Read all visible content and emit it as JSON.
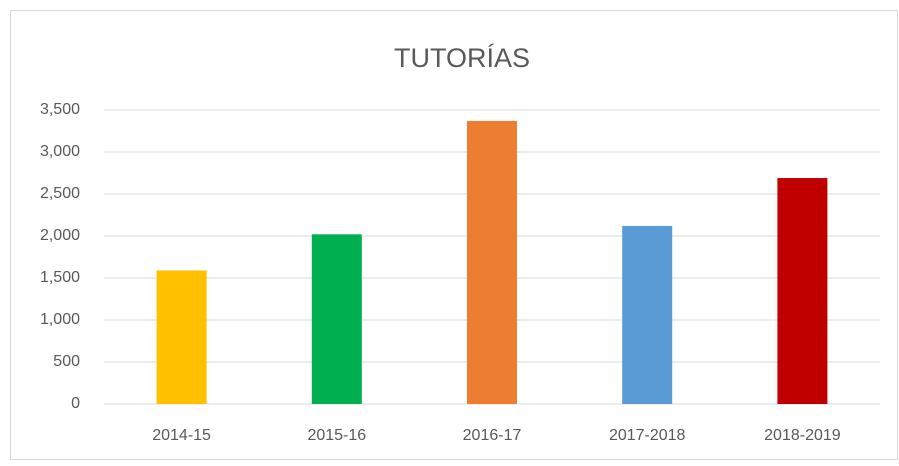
{
  "chart_data": {
    "type": "bar",
    "title": "TUTORÍAS",
    "categories": [
      "2014-15",
      "2015-16",
      "2016-17",
      "2017-2018",
      "2018-2019"
    ],
    "values": [
      1590,
      2020,
      3370,
      2120,
      2690
    ],
    "colors": [
      "#ffc000",
      "#00b050",
      "#ed7d31",
      "#5b9bd5",
      "#c00000"
    ],
    "ylim": [
      0,
      3500
    ],
    "yticks": [
      0,
      500,
      {
        "value": 1000,
        "label": "1,000"
      },
      {
        "value": 1500,
        "label": "1,500"
      },
      {
        "value": 2000,
        "label": "2,000"
      },
      {
        "value": 2500,
        "label": "2,500"
      },
      {
        "value": 3000,
        "label": "3,000"
      },
      {
        "value": 3500,
        "label": "3,500"
      }
    ],
    "grid": true
  }
}
